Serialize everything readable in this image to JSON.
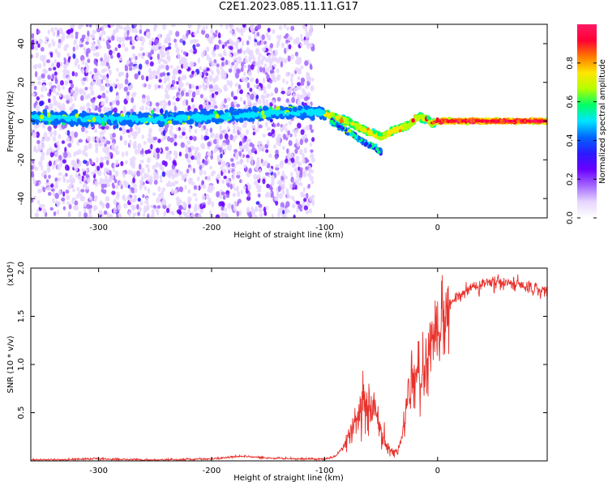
{
  "title": "C2E1.2023.085.11.11.G17",
  "colors": {
    "line": "#e8312b",
    "axis": "#000000",
    "cmap": [
      "#ffffff",
      "#e6d6ff",
      "#a366ff",
      "#6a00ff",
      "#2b1aff",
      "#0066ff",
      "#00e5ff",
      "#00ff66",
      "#b3ff00",
      "#ffe600",
      "#ff7a00",
      "#ff0033",
      "#ff1a66"
    ]
  },
  "chart_data": [
    {
      "type": "heatmap",
      "xlabel": "Height of straight line (km)",
      "ylabel": "Frequency (Hz)",
      "xlim": [
        -360,
        97
      ],
      "ylim": [
        -50,
        50
      ],
      "xticks": [
        -300,
        -200,
        -100,
        0
      ],
      "yticks": [
        -40,
        -20,
        0,
        20,
        40
      ],
      "colorbar": {
        "label": "Normalized spectral amplitude",
        "range": [
          0,
          1
        ],
        "ticks": [
          0.0,
          0.2,
          0.4,
          0.6,
          0.8
        ]
      },
      "ridge": {
        "x": [
          -360,
          -300,
          -250,
          -200,
          -150,
          -120,
          -100,
          -80,
          -70,
          -60,
          -50,
          -45,
          -40,
          -30,
          -25,
          -20,
          -15,
          -10,
          -5,
          0,
          20,
          50,
          97
        ],
        "y": [
          2,
          1,
          1,
          2,
          4,
          5,
          4,
          0,
          -3,
          -6,
          -8,
          -7,
          -5,
          -3,
          -2,
          1,
          2,
          1,
          -1,
          0,
          0,
          0,
          0
        ]
      },
      "lower_branch": {
        "x": [
          -95,
          -85,
          -75,
          -65,
          -55,
          -50
        ],
        "y": [
          0,
          -3,
          -7,
          -11,
          -14,
          -16
        ]
      },
      "noise_region_x": [
        -360,
        -110
      ]
    },
    {
      "type": "line",
      "xlabel": "Height of straight line (km)",
      "ylabel": "SNR (10 * v/v)",
      "yscale_label": "(x10⁴)",
      "xlim": [
        -360,
        97
      ],
      "ylim": [
        0,
        2.0
      ],
      "xticks": [
        -300,
        -200,
        -100,
        0
      ],
      "yticks": [
        0.5,
        1.0,
        1.5,
        2.0
      ],
      "ytick_labels": [
        "0.5",
        "1.0",
        "1.5",
        "2.0"
      ],
      "series": [
        {
          "x": [
            -360,
            -300,
            -250,
            -200,
            -175,
            -150,
            -120,
            -100,
            -90,
            -80,
            -70,
            -65,
            -60,
            -55,
            -50,
            -45,
            -40,
            -35,
            -30,
            -25,
            -20,
            -15,
            -10,
            -5,
            0,
            10,
            20,
            30,
            50,
            70,
            97
          ],
          "y": [
            0.01,
            0.02,
            0.01,
            0.02,
            0.05,
            0.03,
            0.02,
            0.02,
            0.05,
            0.2,
            0.5,
            0.6,
            0.55,
            0.5,
            0.35,
            0.15,
            0.08,
            0.1,
            0.35,
            0.75,
            0.9,
            0.95,
            1.0,
            1.15,
            1.3,
            1.6,
            1.75,
            1.8,
            1.85,
            1.82,
            1.75
          ]
        }
      ]
    }
  ]
}
